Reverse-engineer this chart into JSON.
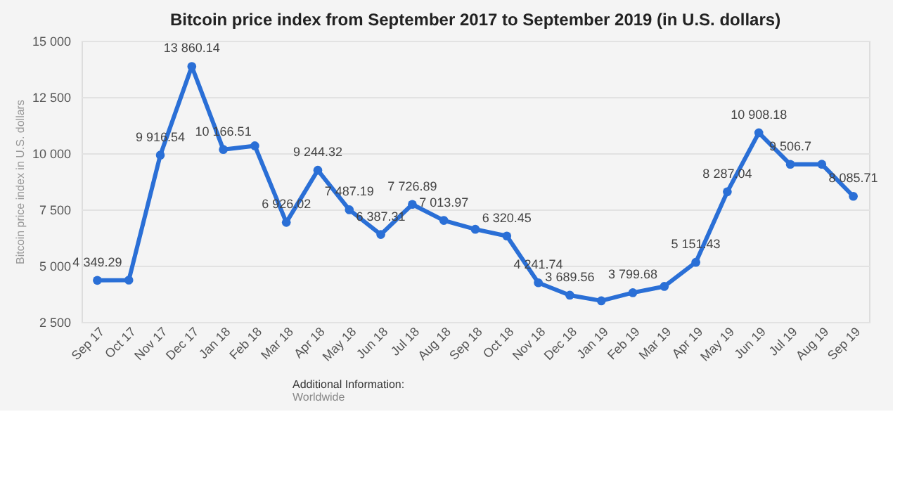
{
  "chart_data": {
    "type": "line",
    "title": "Bitcoin price index from September 2017 to September 2019 (in U.S. dollars)",
    "ylabel": "Bitcoin price index in U.S. dollars",
    "categories": [
      "Sep 17",
      "Oct 17",
      "Nov 17",
      "Dec 17",
      "Jan 18",
      "Feb 18",
      "Mar 18",
      "Apr 18",
      "May 18",
      "Jun 18",
      "Jul 18",
      "Aug 18",
      "Sep 18",
      "Oct 18",
      "Nov 18",
      "Dec 18",
      "Jan 19",
      "Feb 19",
      "Mar 19",
      "Apr 19",
      "May 19",
      "Jun 19",
      "Jul 19",
      "Aug 19",
      "Sep 19"
    ],
    "series": [
      {
        "color": "#2a6fd6",
        "values": [
          4349.29,
          4360,
          9916.54,
          13860.14,
          10166.51,
          10330,
          6926.02,
          9244.32,
          7487.19,
          6387.31,
          7726.89,
          7013.97,
          6620,
          6320.45,
          4241.74,
          3689.56,
          3440,
          3799.68,
          4080,
          5151.43,
          8287.04,
          10908.18,
          9506.7,
          9510,
          8085.71
        ],
        "value_labels": [
          "4 349.29",
          null,
          "9 916.54",
          "13 860.14",
          "10 166.51",
          null,
          "6 926.02",
          "9 244.32",
          "7 487.19",
          "6 387.31",
          "7 726.89",
          "7 013.97",
          null,
          "6 320.45",
          "4 241.74",
          "3 689.56",
          null,
          "3 799.68",
          null,
          "5 151.43",
          "8 287.04",
          "10 908.18",
          "9 506.7",
          null,
          "8 085.71"
        ]
      }
    ],
    "ylim": [
      2500,
      15000
    ],
    "yticks": [
      {
        "value": 2500,
        "label": "2 500"
      },
      {
        "value": 5000,
        "label": "5 000"
      },
      {
        "value": 7500,
        "label": "7 500"
      },
      {
        "value": 10000,
        "label": "10 000"
      },
      {
        "value": 12500,
        "label": "12 500"
      },
      {
        "value": 15000,
        "label": "15 000"
      }
    ],
    "grid": "y",
    "marker": "circle",
    "line_style": "solid",
    "annotations": [
      "Additional Information:",
      "Worldwide"
    ]
  }
}
